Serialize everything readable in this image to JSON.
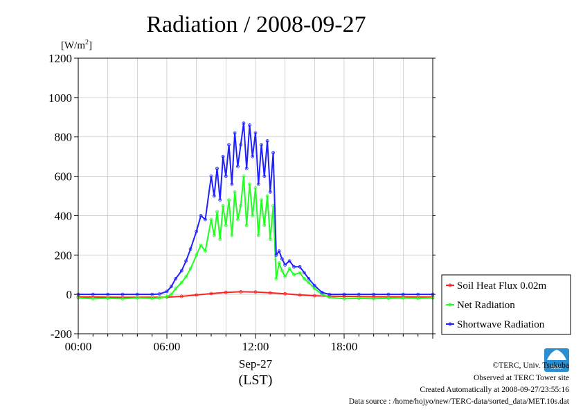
{
  "chart_data": {
    "type": "line",
    "title": "Radiation / 2008-09-27",
    "ylabel_unit": "[W/m",
    "ylabel_sup": "2",
    "ylabel_close": "]",
    "xlabel_date": "Sep-27",
    "xlabel": "(LST)",
    "ylim": [
      -200,
      1200
    ],
    "yticks": [
      -200,
      0,
      200,
      400,
      600,
      800,
      1000,
      1200
    ],
    "xlim_hours": [
      0,
      24
    ],
    "xtick_labels": [
      "00:00",
      "06:00",
      "12:00",
      "18:00"
    ],
    "xtick_hours": [
      0,
      6,
      12,
      18
    ],
    "grid": true,
    "legend_position": "right",
    "series": [
      {
        "name": "Soil Heat Flux 0.02m",
        "color": "#ff2020",
        "x_hours": [
          0,
          3,
          6,
          7,
          8,
          9,
          10,
          11,
          12,
          13,
          14,
          15,
          16,
          17,
          18,
          20,
          22,
          24
        ],
        "values": [
          -13,
          -15,
          -14,
          -10,
          -3,
          4,
          10,
          13,
          12,
          8,
          3,
          -3,
          -7,
          -9,
          -10,
          -12,
          -13,
          -14
        ]
      },
      {
        "name": "Net Radiation",
        "color": "#20ff20",
        "x_hours": [
          0,
          1,
          2,
          3,
          4,
          5,
          5.5,
          6,
          6.3,
          6.6,
          7,
          7.3,
          7.6,
          8,
          8.3,
          8.6,
          9,
          9.2,
          9.4,
          9.6,
          9.8,
          10,
          10.2,
          10.4,
          10.6,
          10.8,
          11,
          11.2,
          11.4,
          11.6,
          11.8,
          12,
          12.2,
          12.4,
          12.6,
          12.8,
          13,
          13.2,
          13.4,
          13.6,
          13.8,
          14,
          14.3,
          14.6,
          15,
          15.3,
          15.6,
          16,
          16.5,
          17,
          18,
          19,
          20,
          21,
          22,
          23,
          24
        ],
        "values": [
          -18,
          -22,
          -20,
          -22,
          -18,
          -20,
          -18,
          -12,
          0,
          30,
          60,
          90,
          130,
          200,
          250,
          220,
          380,
          300,
          420,
          280,
          450,
          350,
          480,
          300,
          520,
          380,
          450,
          600,
          350,
          560,
          400,
          540,
          300,
          480,
          350,
          500,
          280,
          450,
          80,
          160,
          120,
          90,
          130,
          100,
          110,
          80,
          60,
          30,
          0,
          -15,
          -22,
          -20,
          -22,
          -20,
          -18,
          -20,
          -18
        ]
      },
      {
        "name": "Shortwave Radiation",
        "color": "#2020ff",
        "x_hours": [
          0,
          1,
          2,
          3,
          4,
          5,
          5.5,
          6,
          6.3,
          6.6,
          7,
          7.3,
          7.6,
          8,
          8.3,
          8.6,
          9,
          9.2,
          9.4,
          9.6,
          9.8,
          10,
          10.2,
          10.4,
          10.6,
          10.8,
          11,
          11.2,
          11.4,
          11.6,
          11.8,
          12,
          12.2,
          12.4,
          12.6,
          12.8,
          13,
          13.2,
          13.4,
          13.6,
          13.8,
          14,
          14.3,
          14.6,
          15,
          15.3,
          15.6,
          16,
          16.5,
          17,
          18,
          19,
          20,
          21,
          22,
          23,
          24
        ],
        "values": [
          0,
          0,
          0,
          0,
          0,
          0,
          2,
          15,
          40,
          80,
          120,
          170,
          230,
          320,
          400,
          380,
          600,
          500,
          640,
          480,
          700,
          600,
          760,
          560,
          820,
          650,
          760,
          870,
          640,
          860,
          700,
          820,
          560,
          760,
          600,
          780,
          520,
          720,
          200,
          220,
          180,
          150,
          170,
          140,
          140,
          110,
          80,
          45,
          10,
          0,
          0,
          0,
          0,
          0,
          0,
          0,
          0
        ]
      }
    ]
  },
  "footer": {
    "copyright": "©TERC, Univ. Tsukuba",
    "site": "Observed at TERC Tower site",
    "created": "Created Automatically at 2008-09-27/23:55:16",
    "source": "Data source : /home/hojyo/new/TERC-data/sorted_data/MET.10s.dat",
    "logo_text": "TERC"
  }
}
